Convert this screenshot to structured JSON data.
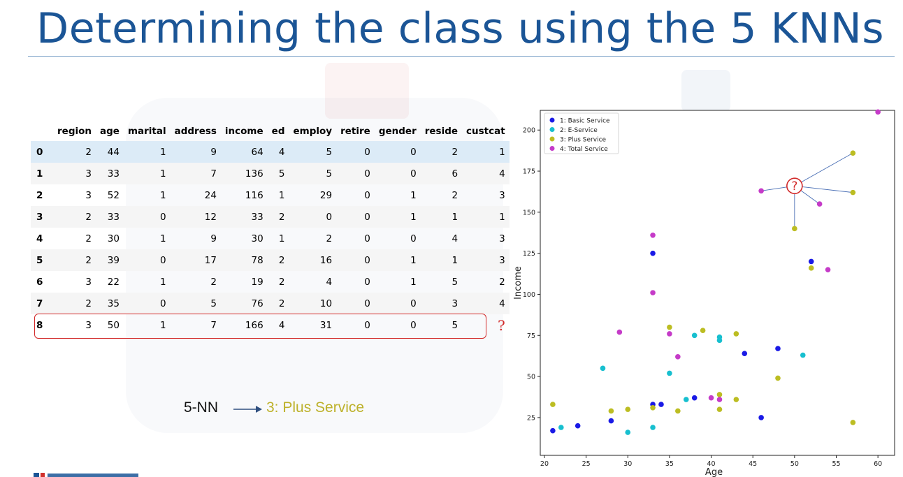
{
  "slide": {
    "title": "Determining the class using the 5 KNNs"
  },
  "table": {
    "columns": [
      "",
      "region",
      "age",
      "marital",
      "address",
      "income",
      "ed",
      "employ",
      "retire",
      "gender",
      "reside",
      "custcat"
    ],
    "rows": [
      [
        "0",
        "2",
        "44",
        "1",
        "9",
        "64",
        "4",
        "5",
        "0",
        "0",
        "2",
        "1"
      ],
      [
        "1",
        "3",
        "33",
        "1",
        "7",
        "136",
        "5",
        "5",
        "0",
        "0",
        "6",
        "4"
      ],
      [
        "2",
        "3",
        "52",
        "1",
        "24",
        "116",
        "1",
        "29",
        "0",
        "1",
        "2",
        "3"
      ],
      [
        "3",
        "2",
        "33",
        "0",
        "12",
        "33",
        "2",
        "0",
        "0",
        "1",
        "1",
        "1"
      ],
      [
        "4",
        "2",
        "30",
        "1",
        "9",
        "30",
        "1",
        "2",
        "0",
        "0",
        "4",
        "3"
      ],
      [
        "5",
        "2",
        "39",
        "0",
        "17",
        "78",
        "2",
        "16",
        "0",
        "1",
        "1",
        "3"
      ],
      [
        "6",
        "3",
        "22",
        "1",
        "2",
        "19",
        "2",
        "4",
        "0",
        "1",
        "5",
        "2"
      ],
      [
        "7",
        "2",
        "35",
        "0",
        "5",
        "76",
        "2",
        "10",
        "0",
        "0",
        "3",
        "4"
      ],
      [
        "8",
        "3",
        "50",
        "1",
        "7",
        "166",
        "4",
        "31",
        "0",
        "0",
        "5",
        "?"
      ]
    ]
  },
  "knn_label": "5-NN",
  "knn_result": "3: Plus Service",
  "colors": {
    "title": "#1b5596",
    "highlight_box": "#d22a2a",
    "result_text": "#bdb12a"
  },
  "chart_data": {
    "type": "scatter",
    "xlabel": "Age",
    "ylabel": "Income",
    "xlim": [
      19.5,
      62
    ],
    "ylim": [
      2,
      212
    ],
    "xticks": [
      20,
      25,
      30,
      35,
      40,
      45,
      50,
      55,
      60
    ],
    "yticks": [
      25,
      50,
      75,
      100,
      125,
      150,
      175,
      200
    ],
    "legend_position": "top-left",
    "series": [
      {
        "name": "1: Basic Service",
        "color": "#1a1ae6",
        "points": [
          [
            21,
            17
          ],
          [
            24,
            20
          ],
          [
            28,
            23
          ],
          [
            33,
            33
          ],
          [
            33,
            125
          ],
          [
            34,
            33
          ],
          [
            38,
            37
          ],
          [
            44,
            64
          ],
          [
            46,
            25
          ],
          [
            48,
            67
          ],
          [
            52,
            120
          ]
        ]
      },
      {
        "name": "2: E-Service",
        "color": "#17bfcf",
        "points": [
          [
            22,
            19
          ],
          [
            27,
            55
          ],
          [
            30,
            16
          ],
          [
            33,
            19
          ],
          [
            35,
            52
          ],
          [
            37,
            36
          ],
          [
            38,
            75
          ],
          [
            41,
            74
          ],
          [
            41,
            72
          ],
          [
            51,
            63
          ]
        ]
      },
      {
        "name": "3: Plus Service",
        "color": "#bcbd22",
        "points": [
          [
            21,
            33
          ],
          [
            28,
            29
          ],
          [
            30,
            30
          ],
          [
            33,
            31
          ],
          [
            35,
            80
          ],
          [
            36,
            29
          ],
          [
            39,
            78
          ],
          [
            41,
            39
          ],
          [
            41,
            30
          ],
          [
            43,
            36
          ],
          [
            43,
            76
          ],
          [
            48,
            49
          ],
          [
            50,
            140
          ],
          [
            52,
            116
          ],
          [
            57,
            186
          ],
          [
            57,
            162
          ],
          [
            57,
            22
          ]
        ]
      },
      {
        "name": "4: Total Service",
        "color": "#c53bc8",
        "points": [
          [
            29,
            77
          ],
          [
            33,
            136
          ],
          [
            33,
            101
          ],
          [
            35,
            76
          ],
          [
            36,
            62
          ],
          [
            40,
            37
          ],
          [
            41,
            36
          ],
          [
            46,
            163
          ],
          [
            53,
            155
          ],
          [
            54,
            115
          ],
          [
            60,
            211
          ]
        ]
      }
    ],
    "query_point": {
      "x": 50,
      "y": 166,
      "label": "?"
    },
    "neighbor_links": [
      [
        46,
        163
      ],
      [
        53,
        155
      ],
      [
        57,
        186
      ],
      [
        57,
        162
      ],
      [
        50,
        140
      ]
    ]
  }
}
